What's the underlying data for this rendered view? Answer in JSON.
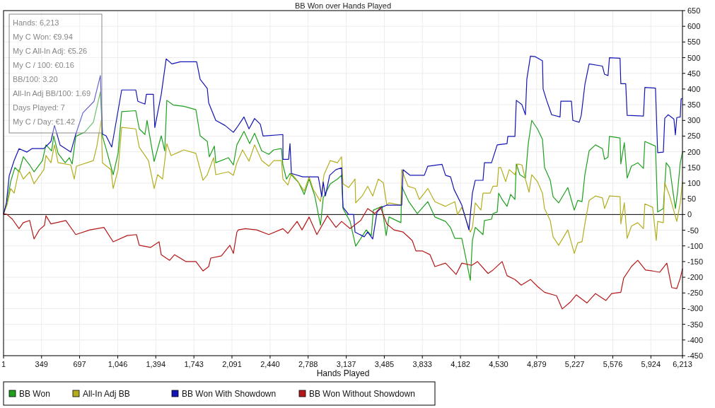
{
  "chart_data": {
    "type": "line",
    "title": "BB Won over Hands Played",
    "xlabel": "Hands Played",
    "annotations": [
      "Hands: 6,213",
      "My C Won: €9.94",
      "My C All-In Adj: €5.26",
      "My C / 100: €0.16",
      "BB/100: 3.20",
      "All-In Adj BB/100: 1.69",
      "Days Played: 7",
      "My C / Day: €1.42"
    ],
    "xlim": [
      1,
      6213
    ],
    "ylim": [
      -450,
      650
    ],
    "xticks": [
      1,
      349,
      697,
      {
        "value": 1046,
        "label": "1,046"
      },
      {
        "value": 1394,
        "label": "1,394"
      },
      {
        "value": 1743,
        "label": "1,743"
      },
      {
        "value": 2091,
        "label": "2,091"
      },
      {
        "value": 2440,
        "label": "2,440"
      },
      {
        "value": 2788,
        "label": "2,788"
      },
      {
        "value": 3137,
        "label": "3,137"
      },
      {
        "value": 3485,
        "label": "3,485"
      },
      {
        "value": 3833,
        "label": "3,833"
      },
      {
        "value": 4182,
        "label": "4,182"
      },
      {
        "value": 4530,
        "label": "4,530"
      },
      {
        "value": 4879,
        "label": "4,879"
      },
      {
        "value": 5227,
        "label": "5,227"
      },
      {
        "value": 5576,
        "label": "5,576"
      },
      {
        "value": 5924,
        "label": "5,924"
      },
      {
        "value": 6213,
        "label": "6,213"
      }
    ],
    "yticks": [
      -450,
      -400,
      -350,
      -300,
      -250,
      -200,
      -150,
      -100,
      -50,
      0,
      50,
      100,
      150,
      200,
      250,
      300,
      350,
      400,
      450,
      500,
      550,
      600,
      650
    ],
    "grid": true,
    "legend": "bottom",
    "marker": "none",
    "line_style": "solid",
    "series": [
      {
        "name": "BB Won",
        "color": "#1ea01e",
        "x": [
          1,
          33,
          66,
          105,
          143,
          182,
          240,
          280,
          357,
          389,
          441,
          460,
          500,
          565,
          603,
          629,
          662,
          745,
          823,
          887,
          906,
          939,
          1004,
          1049,
          1082,
          1211,
          1243,
          1295,
          1314,
          1379,
          1444,
          1476,
          1495,
          1554,
          1651,
          1761,
          1800,
          1865,
          1884,
          1930,
          1943,
          2059,
          2104,
          2136,
          2201,
          2253,
          2298,
          2363,
          2428,
          2473,
          2544,
          2557,
          2590,
          2622,
          2700,
          2752,
          2797,
          2849,
          2901,
          2926,
          2991,
          3056,
          3094,
          3107,
          3172,
          3223,
          3320,
          3366,
          3385,
          3463,
          3502,
          3528,
          3637,
          3644,
          3709,
          3787,
          3883,
          3948,
          4045,
          4091,
          4130,
          4194,
          4227,
          4272,
          4291,
          4317,
          4388,
          4401,
          4466,
          4479,
          4518,
          4531,
          4563,
          4608,
          4641,
          4680,
          4693,
          4725,
          4776,
          4802,
          4834,
          4886,
          4932,
          4951,
          5003,
          5029,
          5080,
          5164,
          5223,
          5255,
          5294,
          5320,
          5359,
          5417,
          5481,
          5500,
          5532,
          5545,
          5642,
          5649,
          5681,
          5707,
          5746,
          5804,
          5856,
          5869,
          5966,
          5986,
          6038,
          6064,
          6096,
          6128,
          6148,
          6167,
          6193,
          6213
        ],
        "values": [
          3,
          37,
          105,
          150,
          136,
          184,
          158,
          136,
          172,
          222,
          203,
          250,
          195,
          165,
          181,
          161,
          249,
          263,
          294,
          391,
          249,
          210,
          127,
          195,
          328,
          331,
          273,
          255,
          300,
          169,
          251,
          203,
          364,
          349,
          345,
          334,
          251,
          233,
          184,
          218,
          165,
          181,
          158,
          222,
          265,
          226,
          259,
          203,
          192,
          206,
          210,
          158,
          113,
          131,
          102,
          64,
          113,
          59,
          -34,
          53,
          98,
          113,
          125,
          19,
          -22,
          -101,
          -49,
          -67,
          14,
          26,
          -67,
          -8,
          -26,
          90,
          41,
          3,
          41,
          -8,
          -22,
          -42,
          -76,
          -76,
          -132,
          -210,
          -83,
          -41,
          -64,
          -19,
          -15,
          3,
          8,
          68,
          48,
          26,
          64,
          48,
          161,
          127,
          116,
          226,
          300,
          273,
          240,
          150,
          109,
          57,
          37,
          86,
          14,
          45,
          41,
          127,
          203,
          222,
          210,
          176,
          183,
          249,
          244,
          161,
          229,
          116,
          154,
          165,
          147,
          233,
          218,
          8,
          19,
          165,
          150,
          68,
          19,
          68,
          165,
          199
        ]
      },
      {
        "name": "All-In Adj BB",
        "color": "#b4ae1e",
        "x": [
          1,
          33,
          66,
          98,
          143,
          182,
          240,
          280,
          370,
          389,
          435,
          467,
          500,
          616,
          648,
          668,
          823,
          855,
          894,
          906,
          984,
          1004,
          1049,
          1082,
          1211,
          1243,
          1327,
          1379,
          1411,
          1456,
          1495,
          1534,
          1651,
          1761,
          1826,
          1865,
          1923,
          1943,
          2059,
          2104,
          2136,
          2188,
          2247,
          2298,
          2363,
          2428,
          2473,
          2544,
          2557,
          2603,
          2635,
          2687,
          2752,
          2797,
          2836,
          2901,
          2933,
          2991,
          3056,
          3094,
          3107,
          3159,
          3217,
          3223,
          3282,
          3333,
          3379,
          3430,
          3476,
          3508,
          3528,
          3637,
          3644,
          3702,
          3767,
          3806,
          3883,
          3948,
          4045,
          4130,
          4155,
          4194,
          4272,
          4291,
          4317,
          4369,
          4388,
          4453,
          4479,
          4518,
          4531,
          4550,
          4595,
          4628,
          4680,
          4706,
          4744,
          4776,
          4809,
          4834,
          4886,
          4932,
          4951,
          5003,
          5029,
          5080,
          5164,
          5223,
          5255,
          5294,
          5320,
          5359,
          5417,
          5481,
          5500,
          5545,
          5642,
          5649,
          5681,
          5707,
          5746,
          5804,
          5856,
          5869,
          5940,
          5973,
          5986,
          6038,
          6051,
          6096,
          6161,
          6193,
          6213
        ],
        "values": [
          3,
          30,
          83,
          68,
          143,
          113,
          136,
          98,
          143,
          188,
          165,
          222,
          165,
          158,
          113,
          154,
          172,
          218,
          300,
          165,
          143,
          83,
          143,
          278,
          273,
          214,
          172,
          83,
          127,
          113,
          226,
          188,
          206,
          195,
          109,
          127,
          181,
          127,
          136,
          125,
          165,
          206,
          170,
          222,
          172,
          154,
          172,
          172,
          113,
          94,
          131,
          109,
          75,
          120,
          79,
          41,
          127,
          172,
          165,
          184,
          98,
          86,
          113,
          37,
          59,
          90,
          59,
          113,
          101,
          30,
          37,
          30,
          143,
          90,
          83,
          48,
          83,
          41,
          26,
          41,
          0,
          23,
          -56,
          -42,
          37,
          14,
          68,
          68,
          90,
          90,
          150,
          150,
          105,
          143,
          127,
          161,
          158,
          113,
          71,
          127,
          105,
          68,
          19,
          -19,
          -71,
          -98,
          -49,
          -124,
          -90,
          -87,
          -30,
          45,
          59,
          53,
          19,
          59,
          57,
          -30,
          37,
          -76,
          -37,
          -26,
          -45,
          34,
          23,
          -83,
          -22,
          -26,
          101,
          59,
          -22,
          37,
          105
        ]
      },
      {
        "name": "BB Won With Showdown",
        "color": "#1414b4",
        "x": [
          1,
          27,
          53,
          98,
          143,
          215,
          260,
          370,
          435,
          467,
          519,
          616,
          662,
          727,
          829,
          887,
          906,
          939,
          991,
          1082,
          1211,
          1230,
          1295,
          1308,
          1372,
          1385,
          1444,
          1489,
          1541,
          1619,
          1768,
          1800,
          1865,
          1878,
          1943,
          2027,
          2104,
          2136,
          2201,
          2247,
          2298,
          2350,
          2376,
          2557,
          2558,
          2609,
          2622,
          2635,
          2739,
          2881,
          2913,
          2926,
          2946,
          2985,
          3043,
          3094,
          3107,
          3159,
          3204,
          3217,
          3301,
          3333,
          3379,
          3418,
          3463,
          3508,
          3644,
          3657,
          3721,
          3851,
          3883,
          4013,
          4045,
          4091,
          4123,
          4194,
          4259,
          4291,
          4317,
          4388,
          4401,
          4466,
          4518,
          4608,
          4615,
          4680,
          4693,
          4744,
          4776,
          4789,
          4822,
          4867,
          4932,
          4938,
          4970,
          5016,
          5093,
          5100,
          5197,
          5210,
          5268,
          5287,
          5320,
          5359,
          5481,
          5500,
          5532,
          5545,
          5642,
          5649,
          5694,
          5707,
          5856,
          5869,
          5966,
          5986,
          6038,
          6051,
          6083,
          6135,
          6148,
          6161,
          6193,
          6200,
          6213
        ],
        "values": [
          0,
          37,
          124,
          172,
          210,
          199,
          210,
          210,
          233,
          284,
          221,
          199,
          256,
          324,
          361,
          443,
          256,
          251,
          215,
          397,
          397,
          361,
          352,
          383,
          383,
          277,
          383,
          496,
          480,
          487,
          487,
          431,
          402,
          356,
          300,
          284,
          262,
          277,
          311,
          273,
          306,
          288,
          250,
          255,
          176,
          176,
          226,
          131,
          120,
          120,
          57,
          104,
          59,
          125,
          143,
          149,
          23,
          0,
          0,
          -56,
          -71,
          -56,
          -78,
          8,
          23,
          30,
          30,
          143,
          125,
          125,
          154,
          160,
          125,
          120,
          80,
          30,
          -49,
          68,
          109,
          109,
          165,
          165,
          222,
          226,
          249,
          249,
          364,
          350,
          318,
          431,
          505,
          503,
          490,
          400,
          364,
          318,
          311,
          361,
          361,
          300,
          294,
          316,
          414,
          480,
          473,
          447,
          443,
          500,
          498,
          417,
          417,
          316,
          314,
          405,
          403,
          197,
          199,
          307,
          318,
          304,
          254,
          309,
          311,
          368,
          370
        ]
      },
      {
        "name": "BB Won Without Showdown",
        "color": "#b41818",
        "x": [
          1,
          33,
          82,
          143,
          182,
          240,
          280,
          328,
          376,
          389,
          435,
          571,
          662,
          791,
          920,
          1004,
          1133,
          1217,
          1243,
          1346,
          1424,
          1444,
          1521,
          1566,
          1670,
          1761,
          1826,
          1878,
          1897,
          1994,
          2072,
          2104,
          2136,
          2149,
          2214,
          2317,
          2428,
          2557,
          2603,
          2687,
          2732,
          2797,
          2868,
          2965,
          3043,
          3094,
          3172,
          3269,
          3333,
          3398,
          3450,
          3508,
          3573,
          3657,
          3741,
          3774,
          3832,
          3903,
          3948,
          4045,
          4142,
          4194,
          4285,
          4337,
          4434,
          4479,
          4563,
          4608,
          4680,
          4738,
          4822,
          4886,
          4951,
          5061,
          5113,
          5190,
          5242,
          5339,
          5417,
          5513,
          5565,
          5649,
          5675,
          5746,
          5804,
          5875,
          5940,
          6005,
          6070,
          6115,
          6161,
          6193,
          6213
        ],
        "values": [
          3,
          0,
          -15,
          -45,
          -26,
          -19,
          -78,
          -49,
          -34,
          -4,
          -30,
          -19,
          -64,
          -49,
          -41,
          -87,
          -67,
          -64,
          -98,
          -105,
          -87,
          -128,
          -146,
          -128,
          -150,
          -150,
          -180,
          -166,
          -139,
          -132,
          -98,
          -124,
          -56,
          -49,
          -45,
          -49,
          -64,
          -45,
          -60,
          -22,
          -49,
          -8,
          -64,
          -4,
          -41,
          -22,
          -45,
          -19,
          19,
          3,
          23,
          -30,
          -49,
          -56,
          -83,
          -116,
          -116,
          -128,
          -166,
          -155,
          -191,
          -155,
          -162,
          -150,
          -188,
          -177,
          -150,
          -195,
          -207,
          -225,
          -207,
          -229,
          -248,
          -259,
          -301,
          -278,
          -256,
          -282,
          -252,
          -274,
          -252,
          -248,
          -203,
          -166,
          -146,
          -177,
          -180,
          -184,
          -155,
          -233,
          -236,
          -203,
          -173
        ]
      }
    ]
  }
}
